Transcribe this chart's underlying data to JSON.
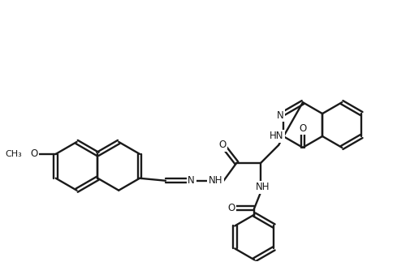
{
  "bg": "#ffffff",
  "lc": "#1a1a1a",
  "lw": 1.7,
  "fs": 8.5,
  "figsize": [
    5.06,
    3.23
  ],
  "dpi": 100,
  "naph_r": 30,
  "naph_c1": [
    93,
    205
  ],
  "benz_r": 28,
  "pht_r": 28,
  "labels": {
    "O_methoxy": "O",
    "methoxy": "CH₃",
    "N_imine": "N",
    "NH_hydrazone": "NH",
    "O_amide1": "O",
    "NH_linker": "NH",
    "O_amide2": "O",
    "HN_phthal": "HN",
    "N_phthal": "N",
    "O_phthal": "O"
  }
}
